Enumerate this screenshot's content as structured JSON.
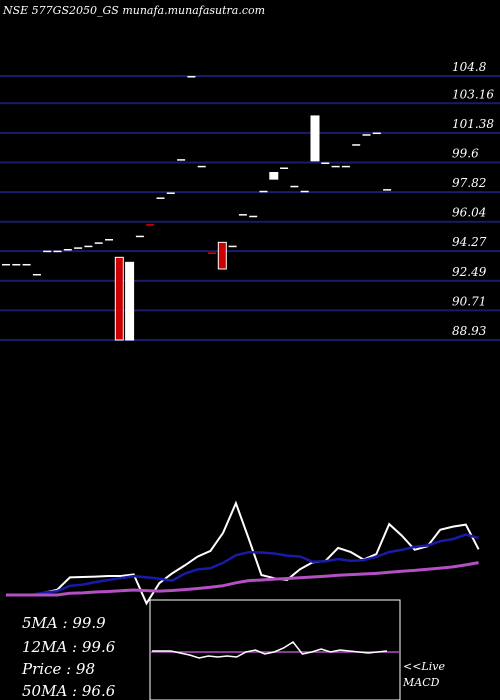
{
  "header": {
    "title": "NSE 577GS2050_GS munafa.munafasutra.com"
  },
  "stats": {
    "ma5": "5MA : 99.9",
    "ma12": "12MA : 99.6",
    "price": "Price  : 98",
    "ma50": "50MA : 96.6"
  },
  "macd": {
    "live_label": "<<Live",
    "macd_label": "MACD"
  },
  "colors": {
    "background": "#000000",
    "gridline": "#1b1b6b",
    "bull": "#ffffff",
    "bear": "#cc0000",
    "ma5": "#ffffff",
    "ma12": "#1a1aa8",
    "ma50": "#b44fc4",
    "macd_zero": "#b44fc4"
  },
  "chart_data": {
    "type": "candlestick",
    "title": "NSE 577GS2050_GS munafa.munafasutra.com",
    "y_ticks": [
      "104.8",
      "103.16",
      "101.38",
      "99.6",
      "97.82",
      "96.04",
      "94.27",
      "92.49",
      "90.71",
      "88.93"
    ],
    "ylim": [
      88.93,
      104.8
    ],
    "grid": true,
    "candles": [
      {
        "o": 93.5,
        "c": 93.5
      },
      {
        "o": 93.5,
        "c": 93.5
      },
      {
        "o": 93.5,
        "c": 93.5
      },
      {
        "o": 92.9,
        "c": 92.9
      },
      {
        "o": 94.3,
        "c": 94.3
      },
      {
        "o": 94.3,
        "c": 94.3
      },
      {
        "o": 94.4,
        "c": 94.4
      },
      {
        "o": 94.5,
        "c": 94.5
      },
      {
        "o": 94.6,
        "c": 94.6
      },
      {
        "o": 94.8,
        "c": 94.8
      },
      {
        "o": 95.0,
        "c": 95.0
      },
      {
        "o": 93.9,
        "c": 88.93
      },
      {
        "o": 88.93,
        "c": 93.6
      },
      {
        "o": 95.2,
        "c": 95.2
      },
      {
        "o": 95.9,
        "c": 95.8
      },
      {
        "o": 97.5,
        "c": 97.5
      },
      {
        "o": 97.8,
        "c": 97.8
      },
      {
        "o": 99.8,
        "c": 99.8
      },
      {
        "o": 104.8,
        "c": 104.8
      },
      {
        "o": 99.4,
        "c": 99.4
      },
      {
        "o": 94.2,
        "c": 94.1
      },
      {
        "o": 94.8,
        "c": 93.2
      },
      {
        "o": 94.6,
        "c": 94.6
      },
      {
        "o": 96.5,
        "c": 96.5
      },
      {
        "o": 96.4,
        "c": 96.4
      },
      {
        "o": 97.9,
        "c": 97.9
      },
      {
        "o": 98.6,
        "c": 99.0
      },
      {
        "o": 99.3,
        "c": 99.3
      },
      {
        "o": 98.2,
        "c": 98.2
      },
      {
        "o": 97.9,
        "c": 97.9
      },
      {
        "o": 99.7,
        "c": 102.4
      },
      {
        "o": 99.6,
        "c": 99.6
      },
      {
        "o": 99.4,
        "c": 99.4
      },
      {
        "o": 99.4,
        "c": 99.4
      },
      {
        "o": 100.7,
        "c": 100.7
      },
      {
        "o": 101.3,
        "c": 101.3
      },
      {
        "o": 101.4,
        "c": 101.4
      },
      {
        "o": 98.0,
        "c": 98.0
      }
    ],
    "series": [
      {
        "name": "5MA",
        "values": [
          595.0,
          595.0,
          595.0,
          592.6,
          589.8,
          577.4,
          577.0,
          576.6,
          576.0,
          576.0,
          574.4,
          603.4,
          583.2,
          573.5,
          565.4,
          556.6,
          550.9,
          532.8,
          503.2,
          538.6,
          575.0,
          578.2,
          579.9,
          569.4,
          562.4,
          561.1,
          547.9,
          552.1,
          559.6,
          554.0,
          524.1,
          535.7,
          549.8,
          546.2,
          529.8,
          526.6,
          524.6,
          549.3
        ]
      },
      {
        "name": "12MA",
        "values": [
          595.0,
          595.0,
          595.0,
          592.6,
          591.2,
          585.8,
          584.6,
          582.1,
          580.0,
          578.1,
          576.1,
          577.2,
          578.8,
          580.7,
          573.6,
          569.4,
          568.3,
          562.8,
          555.3,
          552.2,
          552.5,
          553.5,
          555.6,
          556.5,
          561.8,
          561.2,
          559.0,
          560.9,
          560.1,
          556.8,
          552.0,
          549.9,
          546.8,
          545.5,
          541.2,
          539.1,
          534.6,
          537.9
        ]
      },
      {
        "name": "50MA",
        "values": [
          595.0,
          595.0,
          595.0,
          595.0,
          595.0,
          593.3,
          592.9,
          592.0,
          591.5,
          590.7,
          590.0,
          590.6,
          591.1,
          590.5,
          589.6,
          588.5,
          587.2,
          585.7,
          582.8,
          580.6,
          580.0,
          579.1,
          578.5,
          577.7,
          577.0,
          576.2,
          575.2,
          574.6,
          574.0,
          573.4,
          572.2,
          571.2,
          570.4,
          569.3,
          568.1,
          566.9,
          564.9,
          562.6
        ]
      }
    ]
  }
}
